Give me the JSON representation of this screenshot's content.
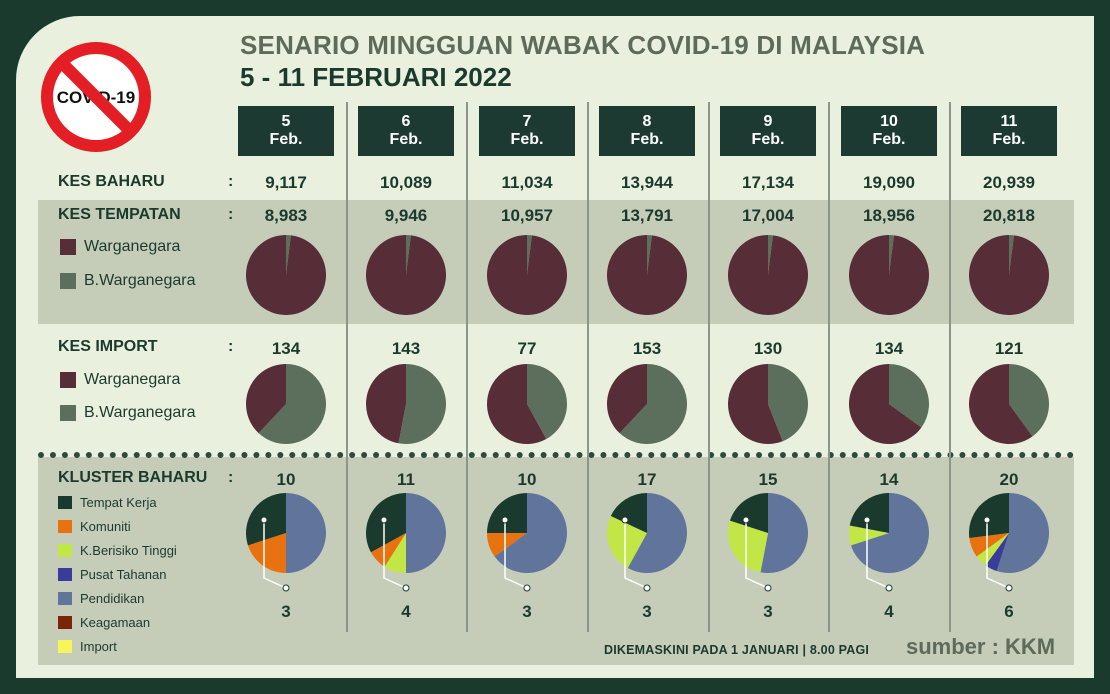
{
  "header": {
    "title": "SENARIO MINGGUAN WABAK COVID-19 DI MALAYSIA",
    "subtitle": "5 - 11 FEBRUARI 2022",
    "logo_text": "COVID-19"
  },
  "rows": {
    "new_cases": "KES BAHARU",
    "local_cases": "KES TEMPATAN",
    "import_cases": "KES IMPORT",
    "new_clusters": "KLUSTER BAHARU",
    "colon": ":"
  },
  "citizen_legend": [
    {
      "label": "Warganegara",
      "color": "#572d38"
    },
    {
      "label": "B.Warganegara",
      "color": "#5c6e5c"
    }
  ],
  "cluster_legend": [
    {
      "label": "Tempat Kerja",
      "color": "#1b3a2e"
    },
    {
      "label": "Komuniti",
      "color": "#e8720f"
    },
    {
      "label": "K.Berisiko Tinggi",
      "color": "#c2e645"
    },
    {
      "label": "Pusat Tahanan",
      "color": "#3a3c9a"
    },
    {
      "label": "Pendidikan",
      "color": "#60749c"
    },
    {
      "label": "Keagamaan",
      "color": "#7a2408"
    },
    {
      "label": "Import",
      "color": "#f6f65a"
    }
  ],
  "chart_data": {
    "type": "pie",
    "days": [
      {
        "day": "5",
        "month": "Feb.",
        "kes_baharu": "9,117",
        "kes_tempatan": "8,983",
        "kes_import": "134",
        "kluster_baharu": "10",
        "kluster_note": "3",
        "local_split": [
          0.98,
          0.02
        ],
        "import_split": [
          0.38,
          0.62
        ],
        "cluster_split": [
          0.3,
          0.2,
          0,
          0,
          0.5,
          0,
          0
        ]
      },
      {
        "day": "6",
        "month": "Feb.",
        "kes_baharu": "10,089",
        "kes_tempatan": "9,946",
        "kes_import": "143",
        "kluster_baharu": "11",
        "kluster_note": "4",
        "local_split": [
          0.98,
          0.02
        ],
        "import_split": [
          0.47,
          0.53
        ],
        "cluster_split": [
          0.33,
          0.08,
          0.09,
          0,
          0.5,
          0,
          0
        ]
      },
      {
        "day": "7",
        "month": "Feb.",
        "kes_baharu": "11,034",
        "kes_tempatan": "10,957",
        "kes_import": "77",
        "kluster_baharu": "10",
        "kluster_note": "3",
        "local_split": [
          0.98,
          0.02
        ],
        "import_split": [
          0.58,
          0.42
        ],
        "cluster_split": [
          0.25,
          0.1,
          0,
          0,
          0.65,
          0,
          0
        ]
      },
      {
        "day": "8",
        "month": "Feb.",
        "kes_baharu": "13,944",
        "kes_tempatan": "13,791",
        "kes_import": "153",
        "kluster_baharu": "17",
        "kluster_note": "3",
        "local_split": [
          0.98,
          0.02
        ],
        "import_split": [
          0.38,
          0.62
        ],
        "cluster_split": [
          0.18,
          0,
          0.24,
          0,
          0.58,
          0,
          0
        ]
      },
      {
        "day": "9",
        "month": "Feb.",
        "kes_baharu": "17,134",
        "kes_tempatan": "17,004",
        "kes_import": "130",
        "kluster_baharu": "15",
        "kluster_note": "3",
        "local_split": [
          0.98,
          0.02
        ],
        "import_split": [
          0.56,
          0.44
        ],
        "cluster_split": [
          0.2,
          0,
          0.27,
          0,
          0.53,
          0,
          0
        ]
      },
      {
        "day": "10",
        "month": "Feb.",
        "kes_baharu": "19,090",
        "kes_tempatan": "18,956",
        "kes_import": "134",
        "kluster_baharu": "14",
        "kluster_note": "4",
        "local_split": [
          0.98,
          0.02
        ],
        "import_split": [
          0.65,
          0.35
        ],
        "cluster_split": [
          0.22,
          0,
          0.08,
          0,
          0.7,
          0,
          0
        ]
      },
      {
        "day": "11",
        "month": "Feb.",
        "kes_baharu": "20,939",
        "kes_tempatan": "20,818",
        "kes_import": "121",
        "kluster_baharu": "20",
        "kluster_note": "6",
        "local_split": [
          0.98,
          0.02
        ],
        "import_split": [
          0.6,
          0.4
        ],
        "cluster_split": [
          0.27,
          0.08,
          0.05,
          0.05,
          0.55,
          0,
          0
        ]
      }
    ]
  },
  "footer": {
    "updated": "DIKEMASKINI PADA 1 JANUARI | 8.00 PAGI",
    "source": "sumber : KKM"
  }
}
